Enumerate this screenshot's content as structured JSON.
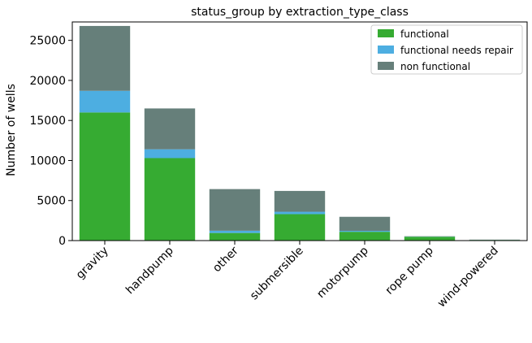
{
  "chart_data": {
    "type": "bar",
    "stacked": true,
    "title": "status_group by extraction_type_class",
    "xlabel": "",
    "ylabel": "Number of wells",
    "ylim": [
      0,
      27300
    ],
    "yticks": [
      0,
      5000,
      10000,
      15000,
      20000,
      25000
    ],
    "categories": [
      "gravity",
      "handpump",
      "other",
      "submersible",
      "motorpump",
      "rope pump",
      "wind-powered"
    ],
    "series": [
      {
        "name": "functional",
        "color": "#36ab32",
        "values": [
          16000,
          10300,
          950,
          3300,
          1100,
          480,
          80
        ]
      },
      {
        "name": "functional needs repair",
        "color": "#4daee1",
        "values": [
          2700,
          1100,
          280,
          300,
          120,
          20,
          10
        ]
      },
      {
        "name": "non functional",
        "color": "#667f7a",
        "values": [
          8100,
          5100,
          5200,
          2600,
          1750,
          40,
          30
        ]
      }
    ],
    "grid": false,
    "legend": "top-right"
  }
}
